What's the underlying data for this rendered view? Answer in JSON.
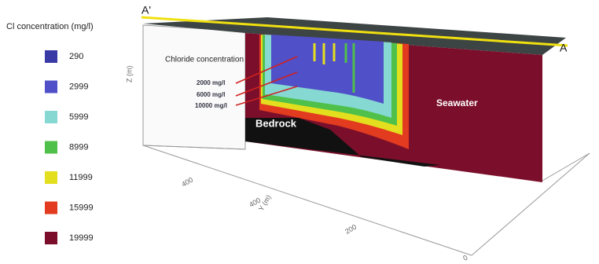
{
  "legend": {
    "title": "Cl concentration (mg/l)",
    "items": [
      {
        "label": "290",
        "color": "#3a3aa6"
      },
      {
        "label": "2999",
        "color": "#5050c8"
      },
      {
        "label": "5999",
        "color": "#86d8d2"
      },
      {
        "label": "8999",
        "color": "#4fc04a"
      },
      {
        "label": "11999",
        "color": "#e4df1e"
      },
      {
        "label": "15999",
        "color": "#e23b1f"
      },
      {
        "label": "19999",
        "color": "#7b0f2b"
      }
    ]
  },
  "section": {
    "start_label": "A'",
    "end_label": "A",
    "annotation": "Chloride concentration",
    "contours": [
      "2000 mg/l",
      "6000 mg/l",
      "10000 mg/l"
    ],
    "bedrock": "Bedrock",
    "seawater": "Seawater"
  },
  "axes": {
    "z_label": "Z (m)",
    "y_label": "Y (m)",
    "y_ticks": [
      "400",
      "400",
      "200",
      "0"
    ]
  }
}
